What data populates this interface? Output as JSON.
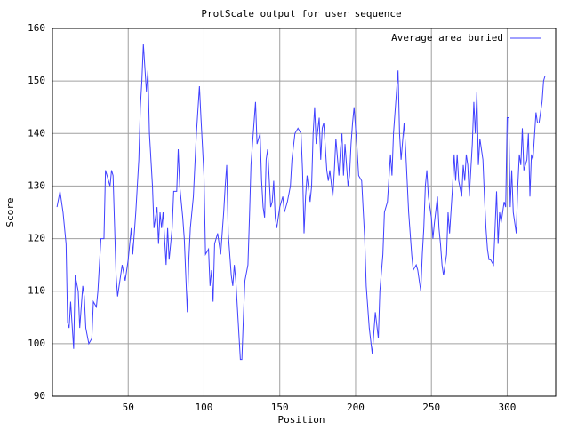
{
  "chart_data": {
    "type": "line",
    "title": "ProtScale output for user sequence",
    "x_label": "Position",
    "y_label": "Score",
    "xlim": [
      0,
      332
    ],
    "ylim": [
      90,
      160
    ],
    "xticks": [
      50,
      100,
      150,
      200,
      250,
      300
    ],
    "yticks": [
      90,
      100,
      110,
      120,
      130,
      140,
      150,
      160
    ],
    "grid": true,
    "legend": "top-right",
    "x": [
      3,
      5,
      7,
      9,
      10,
      11,
      12,
      14,
      15,
      17,
      18,
      20,
      21,
      22,
      24,
      26,
      27,
      29,
      30,
      32,
      34,
      35,
      37,
      38,
      39,
      40,
      42,
      43,
      45,
      46,
      48,
      50,
      52,
      53,
      55,
      57,
      58,
      59,
      60,
      62,
      63,
      64,
      66,
      67,
      69,
      70,
      71,
      72,
      73,
      75,
      76,
      77,
      79,
      80,
      82,
      83,
      84,
      86,
      87,
      89,
      90,
      91,
      93,
      95,
      97,
      98,
      100,
      101,
      103,
      104,
      105,
      106,
      107,
      109,
      111,
      113,
      114,
      115,
      116,
      118,
      119,
      120,
      121,
      122,
      124,
      125,
      126,
      127,
      129,
      130,
      131,
      133,
      134,
      135,
      137,
      138,
      139,
      140,
      141,
      142,
      144,
      145,
      146,
      147,
      148,
      150,
      152,
      153,
      155,
      157,
      158,
      160,
      162,
      164,
      165,
      166,
      167,
      168,
      170,
      171,
      172,
      173,
      174,
      176,
      177,
      178,
      179,
      181,
      182,
      183,
      185,
      186,
      187,
      189,
      190,
      191,
      192,
      193,
      195,
      196,
      197,
      198,
      199,
      201,
      202,
      204,
      206,
      207,
      209,
      211,
      213,
      215,
      216,
      218,
      219,
      221,
      223,
      224,
      225,
      227,
      228,
      229,
      230,
      232,
      233,
      234,
      235,
      237,
      238,
      240,
      241,
      243,
      244,
      245,
      246,
      247,
      248,
      250,
      251,
      252,
      254,
      255,
      256,
      257,
      258,
      260,
      261,
      262,
      264,
      265,
      266,
      267,
      268,
      270,
      271,
      272,
      273,
      274,
      275,
      277,
      278,
      279,
      280,
      281,
      282,
      284,
      285,
      286,
      287,
      288,
      289,
      291,
      292,
      293,
      294,
      295,
      296,
      298,
      299,
      300,
      301,
      302,
      303,
      304,
      306,
      307,
      308,
      309,
      310,
      311,
      313,
      314,
      315,
      316,
      317,
      319,
      320,
      321,
      322,
      323,
      324,
      325
    ],
    "series": [
      {
        "name": "Average area buried",
        "color": "#4040ff",
        "values": [
          126,
          129,
          125,
          119,
          104,
          103,
          108,
          99,
          113,
          110,
          103,
          111,
          109,
          103,
          100,
          101,
          108,
          107,
          110,
          120,
          120,
          133,
          131,
          130,
          133,
          132,
          113,
          109,
          113,
          115,
          112,
          116,
          122,
          117,
          125,
          135,
          145,
          150,
          157,
          148,
          152,
          140,
          130,
          122,
          126,
          119,
          125,
          122,
          125,
          115,
          122,
          116,
          122,
          129,
          129,
          137,
          130,
          124,
          120,
          106,
          116,
          122,
          128,
          140,
          149,
          143,
          132,
          117,
          118,
          111,
          114,
          108,
          119,
          121,
          117,
          125,
          130,
          134,
          121,
          113,
          111,
          115,
          112,
          107,
          97,
          97,
          105,
          112,
          115,
          124,
          134,
          142,
          146,
          138,
          140,
          131,
          126,
          124,
          135,
          137,
          126,
          127,
          131,
          124,
          122,
          126,
          128,
          125,
          127,
          130,
          135,
          140,
          141,
          140,
          133,
          121,
          128,
          132,
          127,
          130,
          140,
          145,
          138,
          143,
          135,
          141,
          142,
          133,
          131,
          133,
          128,
          133,
          139,
          132,
          137,
          140,
          132,
          138,
          130,
          132,
          138,
          142,
          145,
          137,
          132,
          131,
          120,
          111,
          103,
          98,
          106,
          101,
          110,
          117,
          125,
          127,
          136,
          132,
          140,
          148,
          152,
          140,
          135,
          142,
          137,
          131,
          125,
          117,
          114,
          115,
          114,
          110,
          117,
          122,
          130,
          133,
          128,
          124,
          120,
          123,
          128,
          122,
          119,
          115,
          113,
          117,
          125,
          121,
          130,
          136,
          131,
          136,
          131,
          128,
          134,
          131,
          136,
          134,
          128,
          138,
          146,
          140,
          148,
          134,
          139,
          135,
          128,
          122,
          118,
          116,
          116,
          115,
          122,
          129,
          119,
          125,
          123,
          127,
          126,
          143,
          143,
          126,
          133,
          125,
          121,
          130,
          136,
          134,
          141,
          133,
          135,
          140,
          128,
          136,
          135,
          144,
          142,
          142,
          144,
          146,
          150,
          151
        ]
      }
    ]
  }
}
